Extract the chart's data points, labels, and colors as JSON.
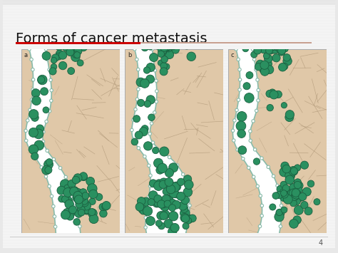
{
  "title": "Forms of cancer metastasis",
  "title_fontsize": 14,
  "background_color": "#e8e8e8",
  "slide_background": "#ffffff",
  "red_bar_color": "#cc0000",
  "tan_bar_color": "#c8a090",
  "page_number": "4",
  "panel_labels": [
    "a",
    "b",
    "c"
  ],
  "skin_color_left": "#d4b090",
  "skin_color_right": "#e0c8a8",
  "vessel_color": "#ffffff",
  "vessel_wall_color": "#88bbaa",
  "vessel_dot_color": "#aaccbb",
  "cell_color": "#2a9060",
  "cell_border": "#1a6040",
  "fiber_color": "#b09878",
  "bottom_line_color": "#cccccc"
}
